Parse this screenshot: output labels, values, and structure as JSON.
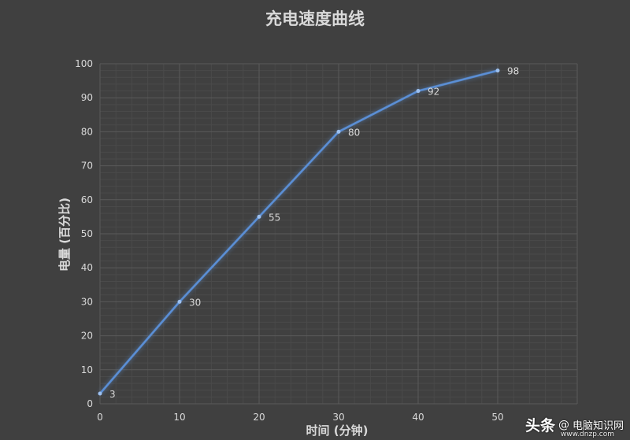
{
  "colors": {
    "background": "#404040",
    "plot_background": "#404040",
    "gridline": "#5a5a5a",
    "series_line": "#5b8fd6",
    "title_text": "#d9d9d9",
    "axis_text": "#d9d9d9"
  },
  "watermark": {
    "head": "头条",
    "at": "@",
    "name": "电脑知识网",
    "sub": "www.dnzp.com"
  },
  "chart_data": {
    "type": "line",
    "title": "充电速度曲线",
    "xlabel": "时间 (分钟)",
    "ylabel": "电量 (百分比)",
    "x": [
      0,
      10,
      20,
      30,
      40,
      50
    ],
    "series": [
      {
        "values": [
          3,
          30,
          55,
          80,
          92,
          98
        ]
      }
    ],
    "xlim": [
      0,
      60
    ],
    "ylim": [
      0,
      100
    ],
    "x_ticks": [
      0,
      10,
      20,
      30,
      40,
      50
    ],
    "y_ticks": [
      0,
      10,
      20,
      30,
      40,
      50,
      60,
      70,
      80,
      90,
      100
    ],
    "data_labels": true,
    "grid": true,
    "minor_grid": true,
    "legend": "none"
  }
}
